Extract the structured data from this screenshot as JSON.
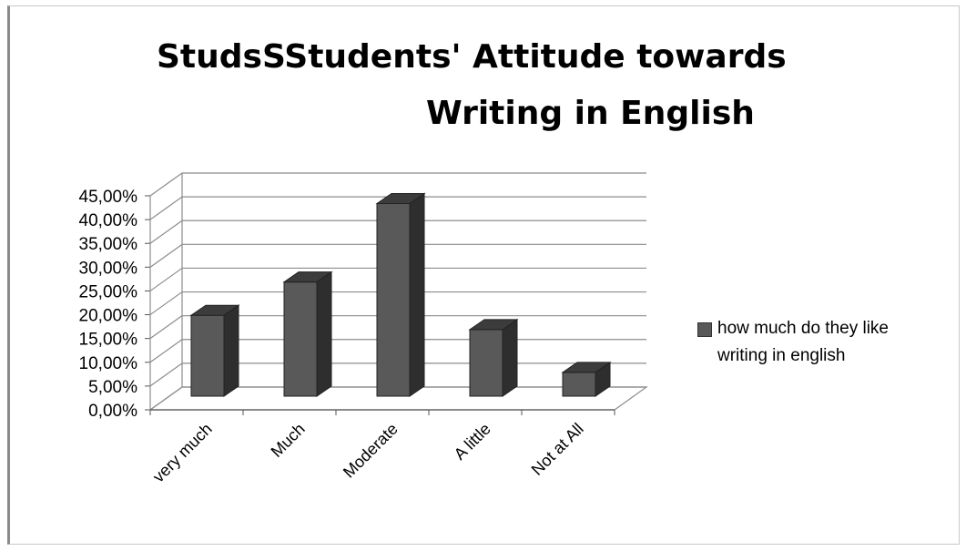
{
  "chart_data": {
    "type": "bar",
    "title_line1": "StudsSStudents' Attitude towards",
    "title_line2": "Writing in English",
    "categories": [
      "very much",
      "Much",
      "Moderate",
      "A little",
      "Not at All"
    ],
    "series": [
      {
        "name": "how much do they like writing in english",
        "values": [
          0.17,
          0.24,
          0.405,
          0.14,
          0.05
        ]
      }
    ],
    "yticks": [
      "0,00%",
      "5,00%",
      "10,00%",
      "15,00%",
      "20,00%",
      "25,00%",
      "30,00%",
      "35,00%",
      "40,00%",
      "45,00%"
    ],
    "ylim": [
      0,
      0.45
    ],
    "grid": true,
    "legend_position": "right",
    "bar_color": "#595959",
    "bar_side_color": "#2e2e2e",
    "bar_top_color": "#3c3c3c",
    "grid_color": "#8c8c8c"
  }
}
